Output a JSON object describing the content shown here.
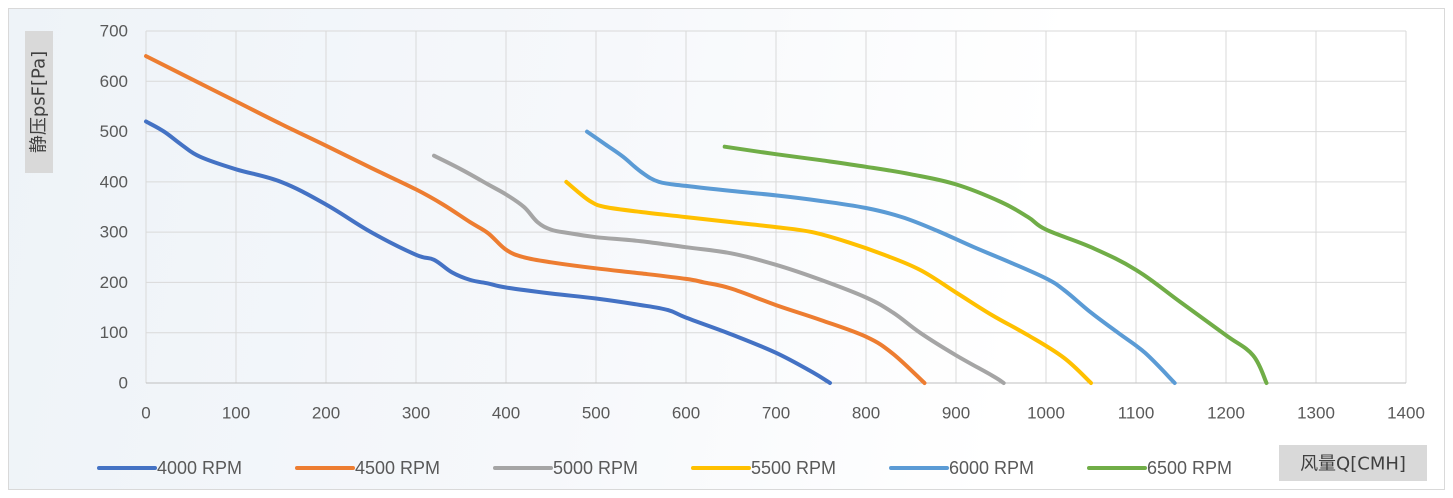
{
  "chart_data": {
    "type": "line",
    "title": "",
    "xlabel": "风量Q[CMH]",
    "ylabel": "静压psF[Pa]",
    "xlim": [
      0,
      1400
    ],
    "ylim": [
      0,
      700
    ],
    "x_ticks": [
      "0",
      "100",
      "200",
      "300",
      "400",
      "500",
      "600",
      "700",
      "800",
      "900",
      "1000",
      "1100",
      "1200",
      "1300",
      "1400"
    ],
    "y_ticks": [
      "0",
      "100",
      "200",
      "300",
      "400",
      "500",
      "600",
      "700"
    ],
    "grid": true,
    "legend_position": "bottom",
    "series": [
      {
        "name": "4000 RPM",
        "color": "#4472C4",
        "points": [
          [
            0,
            520
          ],
          [
            20,
            500
          ],
          [
            40,
            473
          ],
          [
            60,
            450
          ],
          [
            100,
            425
          ],
          [
            150,
            400
          ],
          [
            200,
            355
          ],
          [
            250,
            300
          ],
          [
            300,
            255
          ],
          [
            320,
            245
          ],
          [
            340,
            220
          ],
          [
            360,
            205
          ],
          [
            380,
            198
          ],
          [
            400,
            190
          ],
          [
            450,
            178
          ],
          [
            500,
            168
          ],
          [
            550,
            155
          ],
          [
            580,
            145
          ],
          [
            600,
            130
          ],
          [
            650,
            97
          ],
          [
            700,
            60
          ],
          [
            740,
            22
          ],
          [
            760,
            0
          ]
        ]
      },
      {
        "name": "4500 RPM",
        "color": "#ED7D31",
        "points": [
          [
            0,
            650
          ],
          [
            50,
            605
          ],
          [
            100,
            560
          ],
          [
            150,
            515
          ],
          [
            200,
            472
          ],
          [
            250,
            428
          ],
          [
            300,
            385
          ],
          [
            330,
            355
          ],
          [
            360,
            320
          ],
          [
            380,
            298
          ],
          [
            400,
            265
          ],
          [
            420,
            250
          ],
          [
            450,
            240
          ],
          [
            500,
            228
          ],
          [
            550,
            218
          ],
          [
            600,
            207
          ],
          [
            620,
            200
          ],
          [
            650,
            188
          ],
          [
            700,
            155
          ],
          [
            750,
            125
          ],
          [
            800,
            92
          ],
          [
            830,
            58
          ],
          [
            865,
            0
          ]
        ]
      },
      {
        "name": "5000 RPM",
        "color": "#A5A5A5",
        "points": [
          [
            320,
            452
          ],
          [
            350,
            425
          ],
          [
            380,
            395
          ],
          [
            400,
            375
          ],
          [
            420,
            350
          ],
          [
            435,
            320
          ],
          [
            450,
            305
          ],
          [
            470,
            298
          ],
          [
            500,
            290
          ],
          [
            550,
            282
          ],
          [
            600,
            270
          ],
          [
            650,
            258
          ],
          [
            700,
            235
          ],
          [
            750,
            205
          ],
          [
            800,
            170
          ],
          [
            830,
            140
          ],
          [
            860,
            100
          ],
          [
            900,
            55
          ],
          [
            940,
            15
          ],
          [
            953,
            0
          ]
        ]
      },
      {
        "name": "5500 RPM",
        "color": "#FFC000",
        "points": [
          [
            467,
            400
          ],
          [
            480,
            380
          ],
          [
            495,
            360
          ],
          [
            510,
            350
          ],
          [
            550,
            340
          ],
          [
            600,
            330
          ],
          [
            650,
            320
          ],
          [
            700,
            310
          ],
          [
            740,
            300
          ],
          [
            780,
            280
          ],
          [
            820,
            255
          ],
          [
            860,
            225
          ],
          [
            900,
            180
          ],
          [
            940,
            135
          ],
          [
            980,
            95
          ],
          [
            1020,
            50
          ],
          [
            1050,
            0
          ]
        ]
      },
      {
        "name": "6000 RPM",
        "color": "#5B9BD5",
        "points": [
          [
            490,
            500
          ],
          [
            510,
            475
          ],
          [
            530,
            450
          ],
          [
            550,
            420
          ],
          [
            570,
            400
          ],
          [
            600,
            392
          ],
          [
            650,
            382
          ],
          [
            700,
            373
          ],
          [
            750,
            362
          ],
          [
            800,
            348
          ],
          [
            840,
            330
          ],
          [
            880,
            302
          ],
          [
            920,
            270
          ],
          [
            960,
            240
          ],
          [
            1000,
            208
          ],
          [
            1020,
            185
          ],
          [
            1050,
            140
          ],
          [
            1080,
            100
          ],
          [
            1110,
            60
          ],
          [
            1143,
            0
          ]
        ]
      },
      {
        "name": "6500 RPM",
        "color": "#70AD47",
        "points": [
          [
            643,
            470
          ],
          [
            700,
            455
          ],
          [
            750,
            443
          ],
          [
            800,
            430
          ],
          [
            850,
            415
          ],
          [
            900,
            395
          ],
          [
            950,
            360
          ],
          [
            980,
            330
          ],
          [
            1000,
            305
          ],
          [
            1050,
            270
          ],
          [
            1100,
            225
          ],
          [
            1150,
            160
          ],
          [
            1200,
            95
          ],
          [
            1230,
            55
          ],
          [
            1245,
            0
          ]
        ]
      }
    ]
  }
}
